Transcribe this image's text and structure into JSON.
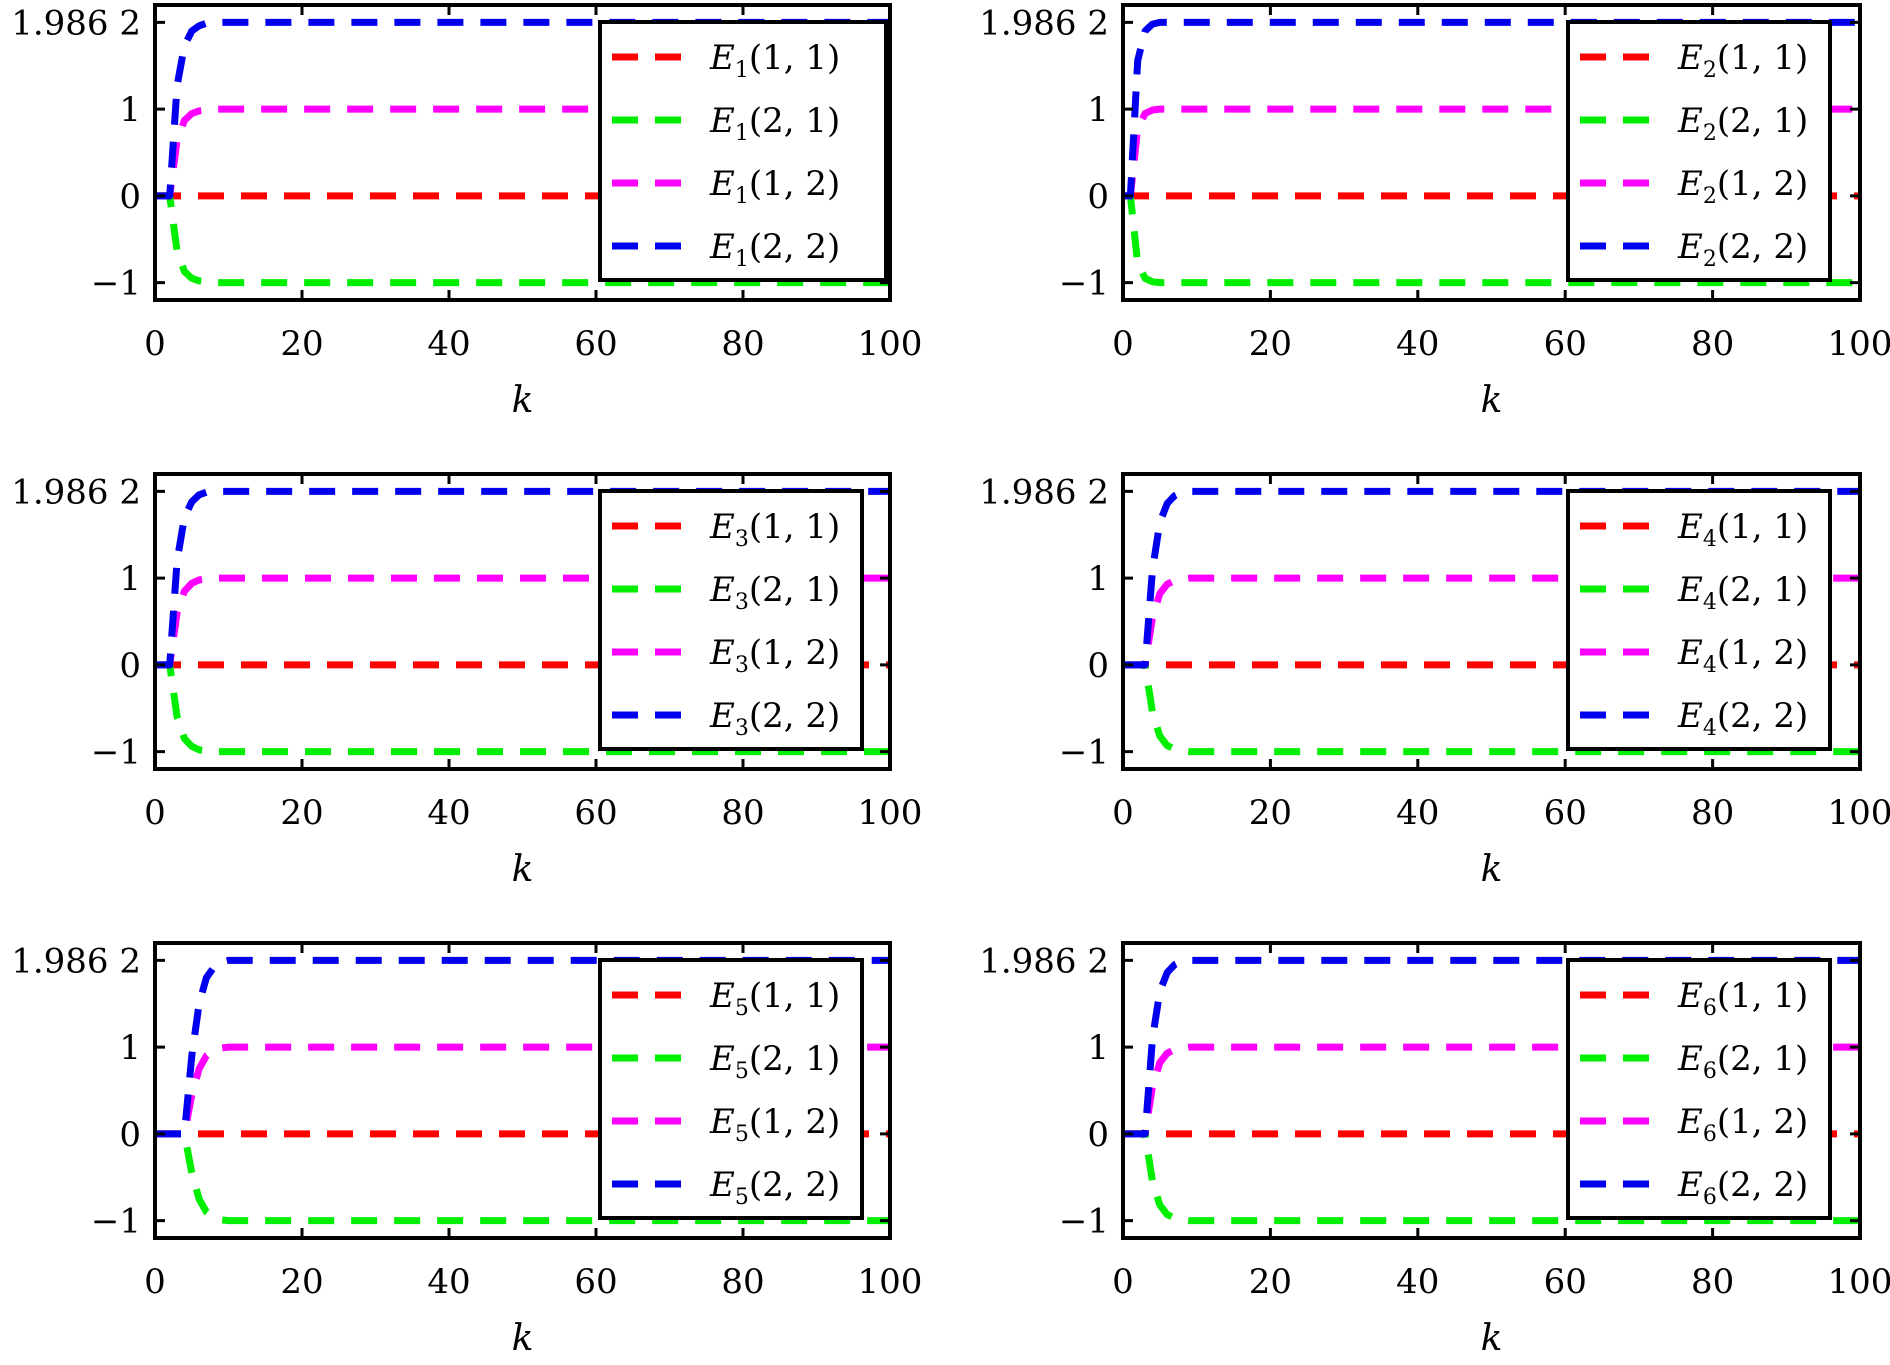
{
  "chart_data": [
    {
      "type": "line",
      "xlabel": "k",
      "xlim": [
        0,
        100
      ],
      "ylim": [
        -1.2,
        2.2
      ],
      "xticks": [
        "0",
        "20",
        "40",
        "60",
        "80",
        "100"
      ],
      "yticks": [
        "1.986 2",
        "1",
        "0",
        "−1"
      ],
      "legend_position": "right",
      "x": [
        0,
        1,
        2,
        3,
        4,
        5,
        6,
        7,
        8,
        9,
        10,
        15,
        20,
        40,
        60,
        80,
        100
      ],
      "series": [
        {
          "name": "E1(1, 1)",
          "label": {
            "base": "E",
            "sub": "1",
            "arg": "(1, 1)"
          },
          "color": "#ff0000",
          "values": [
            0,
            0,
            0,
            0,
            0,
            0,
            0,
            0,
            0,
            0,
            0,
            0,
            0,
            0,
            0,
            0,
            0
          ]
        },
        {
          "name": "E1(2, 1)",
          "label": {
            "base": "E",
            "sub": "1",
            "arg": "(2, 1)"
          },
          "color": "#00ee00",
          "values": [
            0,
            0,
            0,
            -0.64,
            -0.87,
            -0.95,
            -0.98,
            -0.99,
            -1,
            -1,
            -1,
            -1,
            -1,
            -1,
            -1,
            -1,
            -1
          ]
        },
        {
          "name": "E1(1, 2)",
          "label": {
            "base": "E",
            "sub": "1",
            "arg": "(1, 2)"
          },
          "color": "#ff00ff",
          "values": [
            0,
            0,
            0,
            0.64,
            0.87,
            0.95,
            0.98,
            0.99,
            1,
            1,
            1,
            1,
            1,
            1,
            1,
            1,
            1
          ]
        },
        {
          "name": "E1(2, 2)",
          "label": {
            "base": "E",
            "sub": "1",
            "arg": "(2, 2)"
          },
          "color": "#0000ee",
          "values": [
            0,
            0,
            0,
            1.27,
            1.73,
            1.9,
            1.96,
            1.99,
            2,
            2,
            2,
            2,
            2,
            2,
            2,
            2,
            2
          ]
        }
      ]
    },
    {
      "type": "line",
      "xlabel": "k",
      "xlim": [
        0,
        100
      ],
      "ylim": [
        -1.2,
        2.2
      ],
      "xticks": [
        "0",
        "20",
        "40",
        "60",
        "80",
        "100"
      ],
      "yticks": [
        "1.986 2",
        "1",
        "0",
        "−1"
      ],
      "legend_position": "right",
      "x": [
        0,
        1,
        2,
        3,
        4,
        5,
        6,
        7,
        8,
        9,
        10,
        15,
        20,
        40,
        60,
        80,
        100
      ],
      "series": [
        {
          "name": "E2(1, 1)",
          "label": {
            "base": "E",
            "sub": "2",
            "arg": "(1, 1)"
          },
          "color": "#ff0000",
          "values": [
            0,
            0,
            0,
            0,
            0,
            0,
            0,
            0,
            0,
            0,
            0,
            0,
            0,
            0,
            0,
            0,
            0
          ]
        },
        {
          "name": "E2(2, 1)",
          "label": {
            "base": "E",
            "sub": "2",
            "arg": "(2, 1)"
          },
          "color": "#00ee00",
          "values": [
            0,
            0,
            -0.78,
            -0.95,
            -0.99,
            -1,
            -1,
            -1,
            -1,
            -1,
            -1,
            -1,
            -1,
            -1,
            -1,
            -1,
            -1
          ]
        },
        {
          "name": "E2(1, 2)",
          "label": {
            "base": "E",
            "sub": "2",
            "arg": "(1, 2)"
          },
          "color": "#ff00ff",
          "values": [
            0,
            0,
            0.78,
            0.95,
            0.99,
            1,
            1,
            1,
            1,
            1,
            1,
            1,
            1,
            1,
            1,
            1,
            1
          ]
        },
        {
          "name": "E2(2, 2)",
          "label": {
            "base": "E",
            "sub": "2",
            "arg": "(2, 2)"
          },
          "color": "#0000ee",
          "values": [
            0,
            0,
            1.56,
            1.9,
            1.98,
            2,
            2,
            2,
            2,
            2,
            2,
            2,
            2,
            2,
            2,
            2,
            2
          ]
        }
      ]
    },
    {
      "type": "line",
      "xlabel": "k",
      "xlim": [
        0,
        100
      ],
      "ylim": [
        -1.2,
        2.2
      ],
      "xticks": [
        "0",
        "20",
        "40",
        "60",
        "80",
        "100"
      ],
      "yticks": [
        "1.986 2",
        "1",
        "0",
        "−1"
      ],
      "legend_position": "right",
      "x": [
        0,
        1,
        2,
        3,
        4,
        5,
        6,
        7,
        8,
        9,
        10,
        15,
        20,
        40,
        60,
        80,
        100
      ],
      "series": [
        {
          "name": "E3(1, 1)",
          "label": {
            "base": "E",
            "sub": "3",
            "arg": "(1, 1)"
          },
          "color": "#ff0000",
          "values": [
            0,
            0,
            0,
            0,
            0,
            0,
            0,
            0,
            0,
            0,
            0,
            0,
            0,
            0,
            0,
            0,
            0
          ]
        },
        {
          "name": "E3(2, 1)",
          "label": {
            "base": "E",
            "sub": "3",
            "arg": "(2, 1)"
          },
          "color": "#00ee00",
          "values": [
            0,
            0,
            0,
            -0.6,
            -0.85,
            -0.94,
            -0.98,
            -0.99,
            -1,
            -1,
            -1,
            -1,
            -1,
            -1,
            -1,
            -1,
            -1
          ]
        },
        {
          "name": "E3(1, 2)",
          "label": {
            "base": "E",
            "sub": "3",
            "arg": "(1, 2)"
          },
          "color": "#ff00ff",
          "values": [
            0,
            0,
            0,
            0.6,
            0.85,
            0.94,
            0.98,
            0.99,
            1,
            1,
            1,
            1,
            1,
            1,
            1,
            1,
            1
          ]
        },
        {
          "name": "E3(2, 2)",
          "label": {
            "base": "E",
            "sub": "3",
            "arg": "(2, 2)"
          },
          "color": "#0000ee",
          "values": [
            0,
            0,
            0,
            1.2,
            1.7,
            1.88,
            1.96,
            1.99,
            2,
            2,
            2,
            2,
            2,
            2,
            2,
            2,
            2
          ]
        }
      ]
    },
    {
      "type": "line",
      "xlabel": "k",
      "xlim": [
        0,
        100
      ],
      "ylim": [
        -1.2,
        2.2
      ],
      "xticks": [
        "0",
        "20",
        "40",
        "60",
        "80",
        "100"
      ],
      "yticks": [
        "1.986 2",
        "1",
        "0",
        "−1"
      ],
      "legend_position": "right",
      "x": [
        0,
        1,
        2,
        3,
        4,
        5,
        6,
        7,
        8,
        9,
        10,
        15,
        20,
        40,
        60,
        80,
        100
      ],
      "series": [
        {
          "name": "E4(1, 1)",
          "label": {
            "base": "E",
            "sub": "4",
            "arg": "(1, 1)"
          },
          "color": "#ff0000",
          "values": [
            0,
            0,
            0,
            0,
            0,
            0,
            0,
            0,
            0,
            0,
            0,
            0,
            0,
            0,
            0,
            0,
            0
          ]
        },
        {
          "name": "E4(2, 1)",
          "label": {
            "base": "E",
            "sub": "4",
            "arg": "(2, 1)"
          },
          "color": "#00ee00",
          "values": [
            0,
            0,
            0,
            0,
            -0.55,
            -0.82,
            -0.93,
            -0.97,
            -0.99,
            -1,
            -1,
            -1,
            -1,
            -1,
            -1,
            -1,
            -1
          ]
        },
        {
          "name": "E4(1, 2)",
          "label": {
            "base": "E",
            "sub": "4",
            "arg": "(1, 2)"
          },
          "color": "#ff00ff",
          "values": [
            0,
            0,
            0,
            0,
            0.55,
            0.82,
            0.93,
            0.97,
            0.99,
            1,
            1,
            1,
            1,
            1,
            1,
            1,
            1
          ]
        },
        {
          "name": "E4(2, 2)",
          "label": {
            "base": "E",
            "sub": "4",
            "arg": "(2, 2)"
          },
          "color": "#0000ee",
          "values": [
            0,
            0,
            0,
            0,
            1.1,
            1.64,
            1.86,
            1.95,
            1.99,
            2,
            2,
            2,
            2,
            2,
            2,
            2,
            2
          ]
        }
      ]
    },
    {
      "type": "line",
      "xlabel": "k",
      "xlim": [
        0,
        100
      ],
      "ylim": [
        -1.2,
        2.2
      ],
      "xticks": [
        "0",
        "20",
        "40",
        "60",
        "80",
        "100"
      ],
      "yticks": [
        "1.986 2",
        "1",
        "0",
        "−1"
      ],
      "legend_position": "right",
      "x": [
        0,
        1,
        2,
        3,
        4,
        5,
        6,
        7,
        8,
        9,
        10,
        15,
        20,
        40,
        60,
        80,
        100
      ],
      "series": [
        {
          "name": "E5(1, 1)",
          "label": {
            "base": "E",
            "sub": "5",
            "arg": "(1, 1)"
          },
          "color": "#ff0000",
          "values": [
            0,
            0,
            0,
            0,
            0,
            0,
            0,
            0,
            0,
            0,
            0,
            0,
            0,
            0,
            0,
            0,
            0
          ]
        },
        {
          "name": "E5(2, 1)",
          "label": {
            "base": "E",
            "sub": "5",
            "arg": "(2, 1)"
          },
          "color": "#00ee00",
          "values": [
            0,
            0,
            0,
            0,
            0,
            -0.45,
            -0.75,
            -0.9,
            -0.96,
            -0.99,
            -1,
            -1,
            -1,
            -1,
            -1,
            -1,
            -1
          ]
        },
        {
          "name": "E5(1, 2)",
          "label": {
            "base": "E",
            "sub": "5",
            "arg": "(1, 2)"
          },
          "color": "#ff00ff",
          "values": [
            0,
            0,
            0,
            0,
            0,
            0.45,
            0.75,
            0.9,
            0.96,
            0.99,
            1,
            1,
            1,
            1,
            1,
            1,
            1
          ]
        },
        {
          "name": "E5(2, 2)",
          "label": {
            "base": "E",
            "sub": "5",
            "arg": "(2, 2)"
          },
          "color": "#0000ee",
          "values": [
            0,
            0,
            0,
            0,
            0,
            0.9,
            1.5,
            1.8,
            1.92,
            1.98,
            2,
            2,
            2,
            2,
            2,
            2,
            2
          ]
        }
      ]
    },
    {
      "type": "line",
      "xlabel": "k",
      "xlim": [
        0,
        100
      ],
      "ylim": [
        -1.2,
        2.2
      ],
      "xticks": [
        "0",
        "20",
        "40",
        "60",
        "80",
        "100"
      ],
      "yticks": [
        "1.986 2",
        "1",
        "0",
        "−1"
      ],
      "legend_position": "right",
      "x": [
        0,
        1,
        2,
        3,
        4,
        5,
        6,
        7,
        8,
        9,
        10,
        15,
        20,
        40,
        60,
        80,
        100
      ],
      "series": [
        {
          "name": "E6(1, 1)",
          "label": {
            "base": "E",
            "sub": "6",
            "arg": "(1, 1)"
          },
          "color": "#ff0000",
          "values": [
            0,
            0,
            0,
            0,
            0,
            0,
            0,
            0,
            0,
            0,
            0,
            0,
            0,
            0,
            0,
            0,
            0
          ]
        },
        {
          "name": "E6(2, 1)",
          "label": {
            "base": "E",
            "sub": "6",
            "arg": "(2, 1)"
          },
          "color": "#00ee00",
          "values": [
            0,
            0,
            0,
            0,
            -0.55,
            -0.82,
            -0.93,
            -0.97,
            -0.99,
            -1,
            -1,
            -1,
            -1,
            -1,
            -1,
            -1,
            -1
          ]
        },
        {
          "name": "E6(1, 2)",
          "label": {
            "base": "E",
            "sub": "6",
            "arg": "(1, 2)"
          },
          "color": "#ff00ff",
          "values": [
            0,
            0,
            0,
            0,
            0.55,
            0.82,
            0.93,
            0.97,
            0.99,
            1,
            1,
            1,
            1,
            1,
            1,
            1,
            1
          ]
        },
        {
          "name": "E6(2, 2)",
          "label": {
            "base": "E",
            "sub": "6",
            "arg": "(2, 2)"
          },
          "color": "#0000ee",
          "values": [
            0,
            0,
            0,
            0,
            1.1,
            1.64,
            1.86,
            1.95,
            1.99,
            2,
            2,
            2,
            2,
            2,
            2,
            2,
            2
          ]
        }
      ]
    }
  ]
}
